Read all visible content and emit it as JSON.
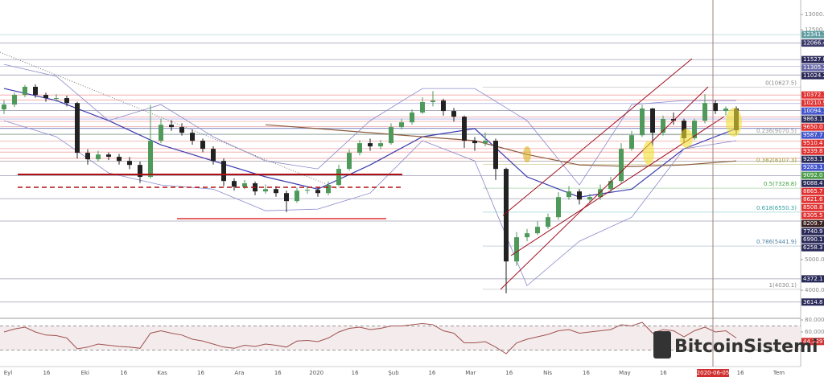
{
  "chart_data": {
    "type": "candlestick",
    "ylim": [
      3110,
      13472
    ],
    "yticks": [
      {
        "value": 13000,
        "label": "13000.0"
      },
      {
        "value": 12500,
        "label": "12500.0"
      },
      {
        "value": 5000,
        "label": "5000.0"
      },
      {
        "value": 4000,
        "label": "4000.0"
      }
    ],
    "categories": [
      "Eyl",
      "16",
      "Eki",
      "16",
      "Kas",
      "16",
      "Ara",
      "16",
      "2020",
      "16",
      "Şub",
      "16",
      "Mar",
      "16",
      "Nis",
      "16",
      "May",
      "16",
      null,
      "16",
      "Tem"
    ],
    "crosshair_date": "2020-06-05",
    "up_color": "#4f9a5a",
    "down_color": "#222222",
    "open": [
      9900,
      10060,
      10375,
      10640,
      10375,
      10270,
      10270,
      10110,
      8485,
      8275,
      8430,
      8355,
      8220,
      8090,
      7700,
      8880,
      9400,
      9325,
      9140,
      8880,
      8615,
      8220,
      7565,
      7380,
      7490,
      7225,
      7300,
      7170,
      6910,
      7250,
      7275,
      7170,
      7435,
      7960,
      8485,
      8800,
      8695,
      8800,
      9325,
      9480,
      9800,
      10140,
      10190,
      9850,
      9665,
      8880,
      8800,
      8880,
      7960,
      4940,
      5730,
      5860,
      6070,
      6385,
      7040,
      7225,
      6960,
      7040,
      7300,
      7565,
      8615,
      9060,
      9930,
      9140,
      9590,
      9535,
      8960,
      9535,
      10110,
      9850,
      9930
    ],
    "high": [
      10200,
      10450,
      10700,
      10720,
      10450,
      10400,
      10350,
      10150,
      8600,
      8550,
      8500,
      8450,
      8350,
      8200,
      10050,
      9600,
      9550,
      9450,
      9250,
      8950,
      8700,
      8300,
      7650,
      7600,
      7550,
      7450,
      7400,
      7250,
      7350,
      7400,
      7350,
      7550,
      8100,
      8600,
      8900,
      8950,
      8900,
      9450,
      9600,
      9900,
      10300,
      10500,
      10250,
      9950,
      9700,
      9000,
      9150,
      8950,
      8000,
      5900,
      6000,
      6250,
      6500,
      7200,
      7400,
      7300,
      7150,
      7450,
      7700,
      8800,
      9200,
      10050,
      9950,
      9700,
      9800,
      9600,
      9600,
      10400,
      10200,
      10000,
      10000
    ],
    "low": [
      9750,
      9980,
      10300,
      10280,
      10150,
      10150,
      10000,
      8300,
      8100,
      8200,
      8250,
      8100,
      7950,
      7500,
      7650,
      8800,
      9200,
      9050,
      8750,
      8500,
      8100,
      7400,
      7250,
      7300,
      7100,
      7150,
      7050,
      6550,
      6850,
      7150,
      7050,
      7100,
      7400,
      7900,
      8400,
      8550,
      8600,
      8750,
      9250,
      9400,
      9750,
      10000,
      9700,
      9500,
      8650,
      8550,
      8700,
      7600,
      3900,
      4800,
      5600,
      5800,
      6000,
      6300,
      6950,
      6800,
      6850,
      6950,
      7200,
      7500,
      8550,
      9000,
      8700,
      9050,
      9400,
      8800,
      8900,
      9450,
      9750,
      9700,
      9100
    ],
    "close": [
      10060,
      10375,
      10640,
      10375,
      10270,
      10270,
      10110,
      8485,
      8275,
      8430,
      8355,
      8220,
      8090,
      7700,
      8880,
      9400,
      9325,
      9140,
      8880,
      8615,
      8220,
      7565,
      7380,
      7490,
      7225,
      7300,
      7170,
      6910,
      7250,
      7275,
      7170,
      7435,
      7960,
      8485,
      8800,
      8695,
      8800,
      9325,
      9480,
      9800,
      10140,
      10190,
      9850,
      9665,
      8880,
      8800,
      8880,
      7960,
      4940,
      5730,
      5860,
      6070,
      6385,
      7040,
      7225,
      6960,
      7040,
      7300,
      7565,
      8615,
      9060,
      9930,
      9140,
      9590,
      9535,
      8960,
      9535,
      10110,
      9850,
      9930,
      9220
    ],
    "overlays": [
      {
        "color": "#3a3ab0",
        "values": [
          10585,
          10190,
          9535,
          8745,
          8220,
          7700,
          7300,
          8090,
          9010,
          9275,
          7700,
          7040,
          7300,
          8615,
          9275
        ]
      },
      {
        "color": "#8b5a3c",
        "values": [
          null,
          null,
          null,
          null,
          null,
          9400,
          9275,
          9140,
          9010,
          8880,
          8430,
          8090,
          8040,
          8090,
          8220
        ]
      },
      {
        "color": "#8888cc",
        "values": [
          11370,
          10980,
          9535,
          10060,
          9010,
          8220,
          7960,
          9535,
          10585,
          10585,
          9535,
          7435,
          10060,
          10190,
          10190
        ]
      },
      {
        "color": "#8888cc",
        "values": [
          9535,
          9010,
          7830,
          7435,
          7300,
          6595,
          6650,
          7170,
          8880,
          8220,
          4150,
          5600,
          6385,
          8615,
          8880
        ]
      }
    ],
    "levels": [
      {
        "value": 12341.1,
        "label": "12341.1",
        "color": "#5f9ea0"
      },
      {
        "value": 12066.4,
        "label": "12066.4",
        "color": "#3b3b6b"
      },
      {
        "value": 11527.8,
        "label": "11527.8",
        "color": "#2a2a5a"
      },
      {
        "value": 11305.2,
        "label": "11305.2",
        "color": "#6a6aa8"
      },
      {
        "value": 11024.2,
        "label": "11024.2",
        "color": "#2a2a5a"
      },
      {
        "value": 10372.1,
        "label": "10372.1",
        "color": "#e03030"
      },
      {
        "value": 10210.9,
        "label": "10210.9",
        "color": "#e03030"
      },
      {
        "value": 10094.1,
        "label": "10094.1",
        "color": "#4455cc"
      },
      {
        "value": 9863.1,
        "label": "9863.1",
        "color": "#2a2a5a"
      },
      {
        "value": 9650.0,
        "label": "9650.0",
        "color": "#e03030"
      },
      {
        "value": 9587.7,
        "label": "9587.7",
        "color": "#4455cc"
      },
      {
        "value": 9510.4,
        "label": "9510.4",
        "color": "#e03030"
      },
      {
        "value": 9339.8,
        "label": "9339.8",
        "color": "#e03030"
      },
      {
        "value": 9283.1,
        "label": "9283.1",
        "color": "#2a2a5a"
      },
      {
        "value": 9283.1,
        "label": "9283.1",
        "color": "#4455cc"
      },
      {
        "value": 9092.0,
        "label": "9092.0",
        "color": "#4a9a4a"
      },
      {
        "value": 9088.4,
        "label": "9088.4",
        "color": "#2a2a5a"
      },
      {
        "value": 8865.7,
        "label": "8865.7",
        "color": "#e03030"
      },
      {
        "value": 8621.6,
        "label": "8621.6",
        "color": "#e03030"
      },
      {
        "value": 8508.8,
        "label": "8508.8",
        "color": "#e03030"
      },
      {
        "value": 8305.5,
        "label": "8305.5",
        "color": "#e03030"
      },
      {
        "value": 8209.7,
        "label": "8209.7",
        "color": "#3a2020"
      },
      {
        "value": 7740.9,
        "label": "7740.9",
        "color": "#2a2a5a"
      },
      {
        "value": 6990.1,
        "label": "6990.1",
        "color": "#2a2a5a"
      },
      {
        "value": 6258.3,
        "label": "6258.3",
        "color": "#2a2a5a"
      },
      {
        "value": 4372.1,
        "label": "4372.1",
        "color": "#2a2a5a"
      },
      {
        "value": 3614.8,
        "label": "3614.8",
        "color": "#2a2a5a"
      }
    ],
    "fib": [
      {
        "value": 10627.5,
        "label": "0(10627.5)",
        "color": "#888888"
      },
      {
        "value": 9070.5,
        "label": "0.236(9070.5)",
        "color": "#999999"
      },
      {
        "value": 8107.3,
        "label": "0.382(8107.3)",
        "color": "#9a9a30"
      },
      {
        "value": 7328.8,
        "label": "0.5(7328.8)",
        "color": "#40a040"
      },
      {
        "value": 6550.3,
        "label": "0.618(6550.3)",
        "color": "#30a0a0"
      },
      {
        "value": 5441.9,
        "label": "0.786(5441.9)",
        "color": "#5080a0"
      },
      {
        "value": 4030.1,
        "label": "1(4030.1)",
        "color": "#888888"
      }
    ],
    "rsi": {
      "color": "#a05050",
      "ylim": [
        4,
        82
      ],
      "bands": [
        30,
        70
      ],
      "yticks": [
        {
          "value": 80,
          "label": "80.0000"
        },
        {
          "value": 60,
          "label": "60.0000"
        }
      ],
      "current": {
        "value": 44.2297,
        "label": "44.2297"
      },
      "values": [
        60,
        65,
        68,
        60,
        55,
        54,
        50,
        32,
        35,
        40,
        38,
        36,
        35,
        33,
        58,
        62,
        58,
        55,
        48,
        45,
        40,
        35,
        33,
        38,
        36,
        40,
        38,
        35,
        45,
        46,
        44,
        50,
        60,
        66,
        68,
        64,
        66,
        70,
        70,
        72,
        74,
        72,
        62,
        58,
        42,
        42,
        44,
        35,
        24,
        42,
        48,
        52,
        56,
        62,
        64,
        58,
        60,
        62,
        64,
        72,
        70,
        76,
        58,
        64,
        62,
        52,
        62,
        68,
        60,
        62,
        50
      ]
    },
    "watermark": "BitcoinSistemi"
  }
}
